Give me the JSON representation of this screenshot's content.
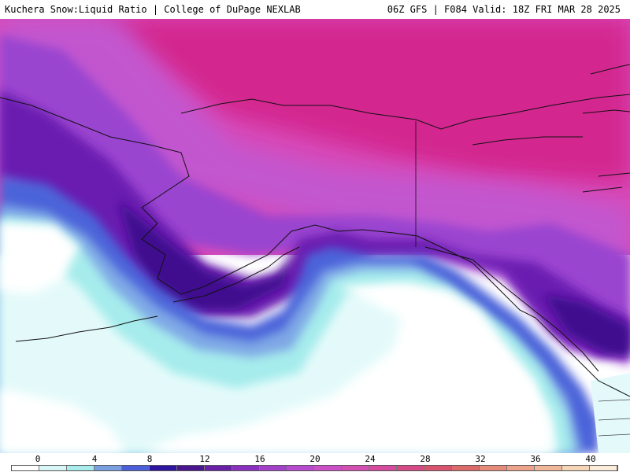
{
  "header": {
    "title": "Kuchera Snow:Liquid Ratio | College of DuPage NEXLAB",
    "valid": "06Z GFS | F084 Valid: 18Z FRI MAR 28 2025"
  },
  "legend": {
    "ticks": [
      "0",
      "4",
      "8",
      "12",
      "16",
      "20",
      "24",
      "28",
      "32",
      "36",
      "40"
    ],
    "colors": [
      "#ffffff",
      "#d8f6f5",
      "#a8ecec",
      "#7a9fe0",
      "#4b5fd8",
      "#2d15a0",
      "#4a1690",
      "#6a1fa8",
      "#8a2fbf",
      "#a241c8",
      "#b84ad0",
      "#cc4fc7",
      "#d44fb2",
      "#d64a9d",
      "#d54a84",
      "#d8546e",
      "#dd6a6a",
      "#e68a7a",
      "#eda28c",
      "#f0b898",
      "#f5d4b8",
      "#faecd8"
    ]
  },
  "map": {
    "palette": {
      "background": "#ffffff",
      "ice_light": "#e4fafa",
      "cyan": "#a6ecec",
      "light_blue": "#7ea7e6",
      "blue": "#4c63d9",
      "deep_purple": "#3f0f8f",
      "purple": "#6a1fb0",
      "violet": "#9a44d0",
      "orchid": "#c257cf",
      "magenta": "#d84ab8",
      "hot_magenta": "#d3278f",
      "coastline": "#111111"
    }
  }
}
